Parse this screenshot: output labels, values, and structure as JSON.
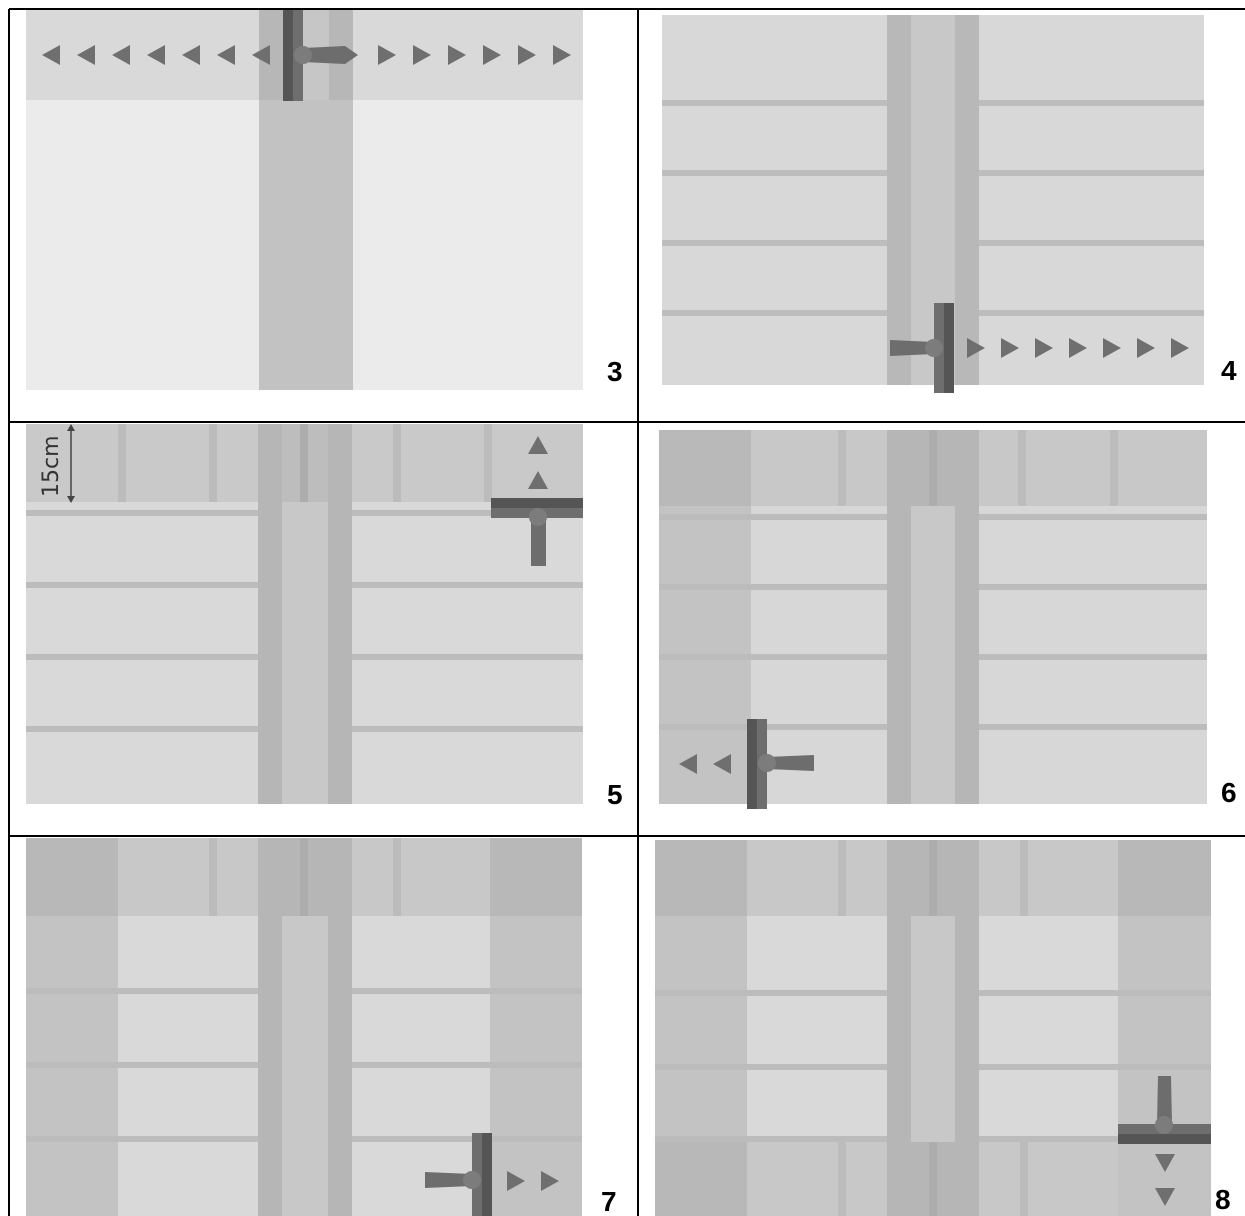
{
  "panels": [
    {
      "id": "3",
      "label": "3"
    },
    {
      "id": "4",
      "label": "4"
    },
    {
      "id": "5",
      "label": "5",
      "measure_label": "15cm"
    },
    {
      "id": "6",
      "label": "6"
    },
    {
      "id": "7",
      "label": "7"
    },
    {
      "id": "8",
      "label": "8"
    }
  ],
  "colors": {
    "grid_line": "#000000",
    "field_light": "#ebebeb",
    "field_mid": "#d7d7d7",
    "field_dark": "#c4c4c4",
    "track": "#b8b8b8",
    "track_inner": "#c8c8c8",
    "row_line": "#b9b9b9",
    "tool_dark": "#555555",
    "tool_mid": "#7c7c7c",
    "arrow": "#6f6f6f"
  },
  "icons": [
    "vehicle-tool-icon",
    "direction-arrow-icon"
  ]
}
